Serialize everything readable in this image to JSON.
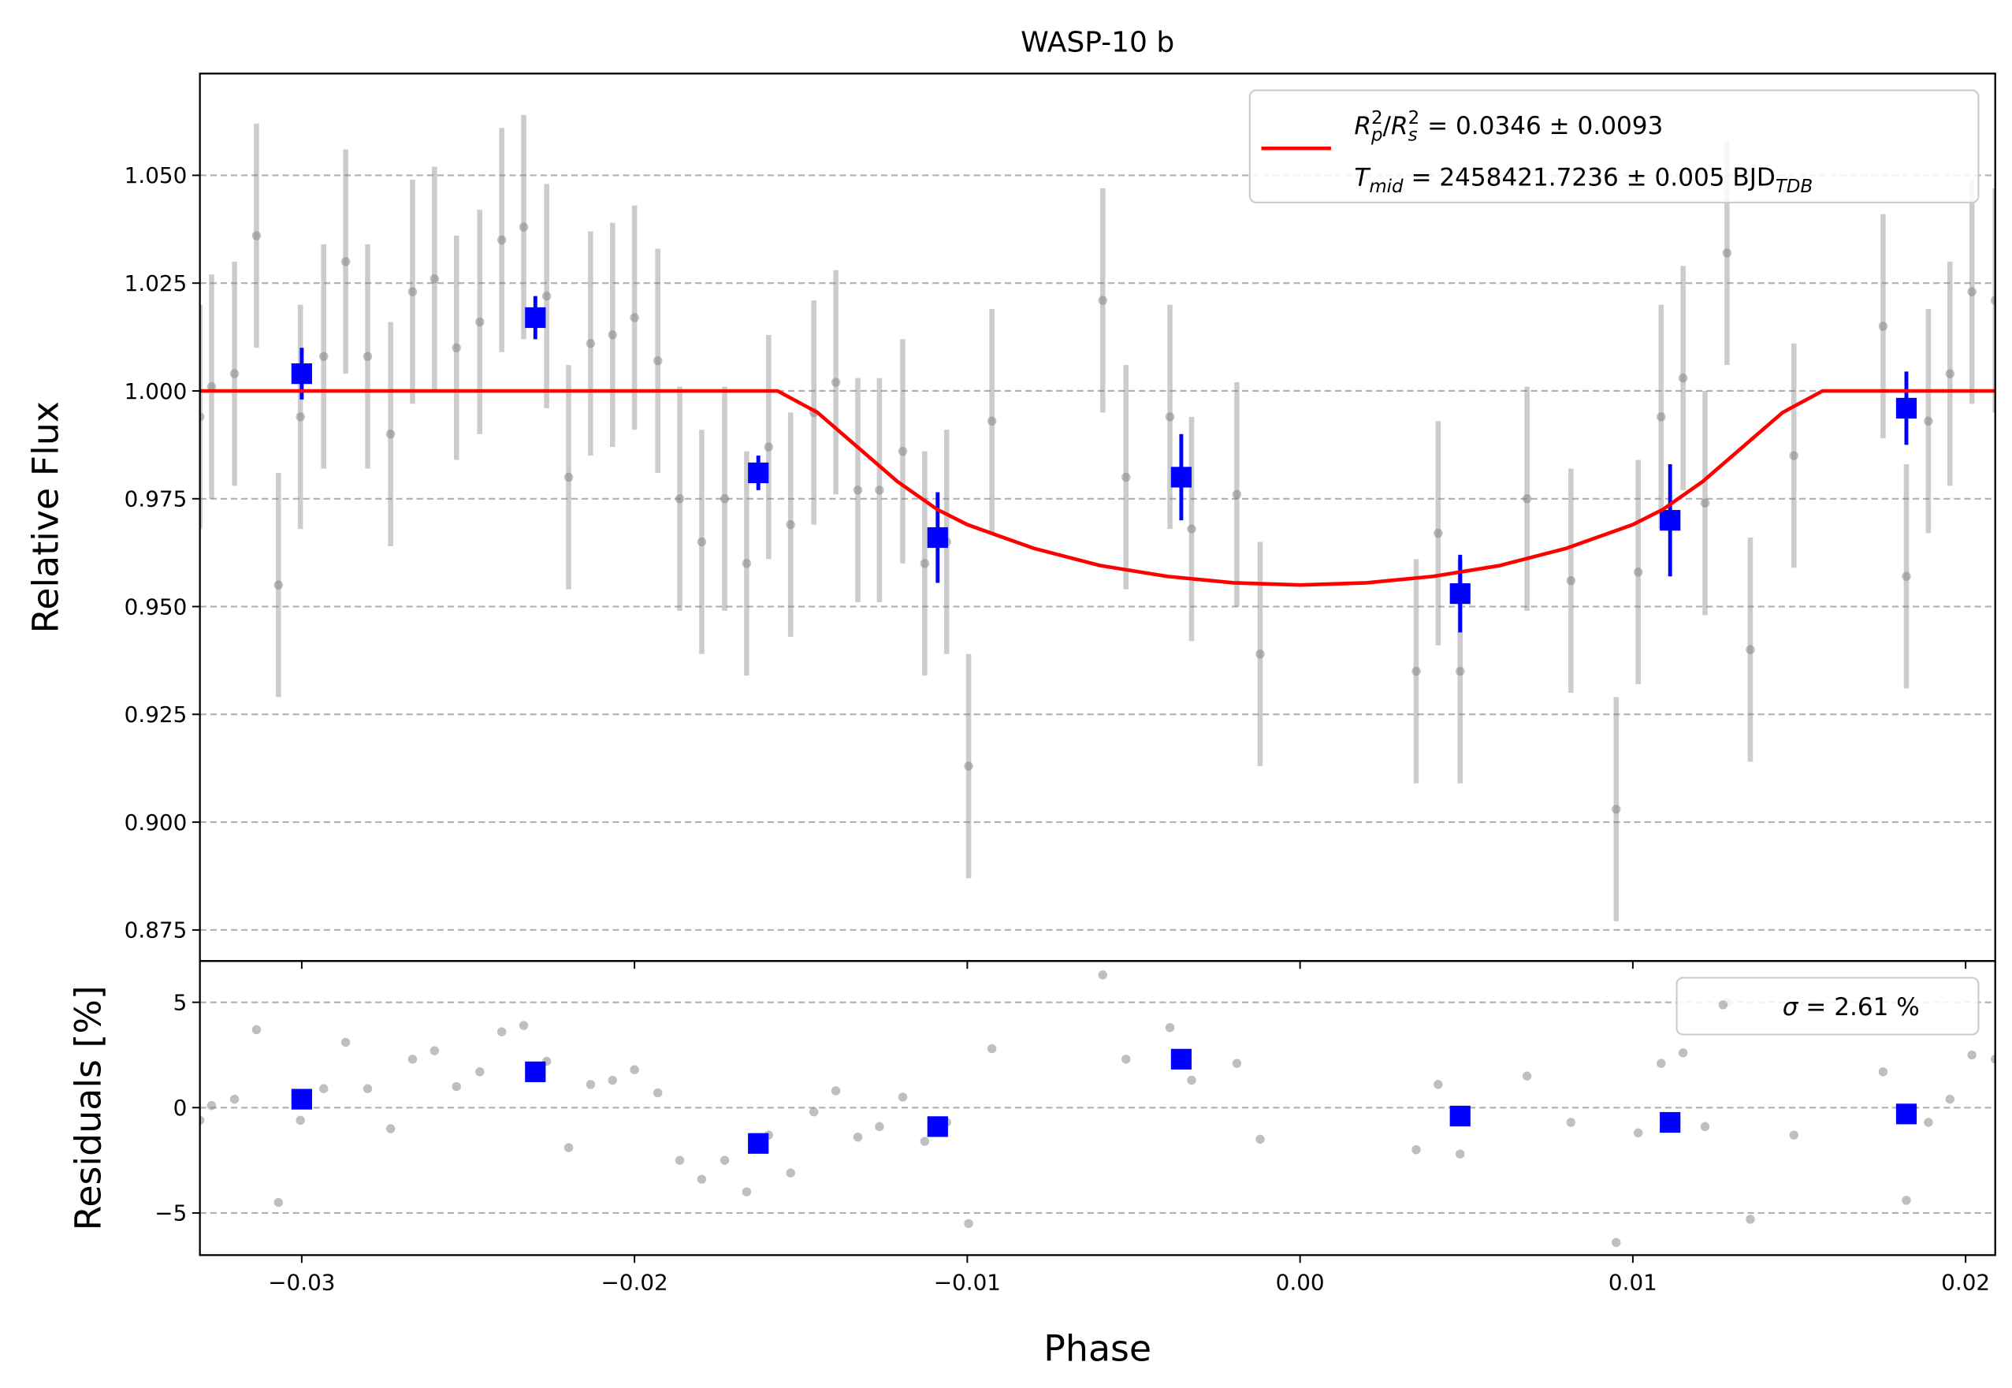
{
  "chart_data": [
    {
      "type": "scatter",
      "title": "WASP-10 b",
      "ylabel": "Relative Flux",
      "xlim": [
        -0.03306,
        0.02089
      ],
      "ylim": [
        0.8678,
        1.0736
      ],
      "yticks": [
        {
          "value": 0.875,
          "label": "0.875"
        },
        {
          "value": 0.9,
          "label": "0.900"
        },
        {
          "value": 0.925,
          "label": "0.925"
        },
        {
          "value": 0.95,
          "label": "0.950"
        },
        {
          "value": 0.975,
          "label": "0.975"
        },
        {
          "value": 1.0,
          "label": "1.000"
        },
        {
          "value": 1.025,
          "label": "1.025"
        },
        {
          "value": 1.05,
          "label": "1.050"
        }
      ],
      "grid": true,
      "legend_loc": "upper right",
      "series": [
        {
          "kind": "points",
          "color": "#808080",
          "error": 0.026,
          "x": [
            -0.03306,
            -0.03271,
            -0.03202,
            -0.03136,
            -0.0307,
            -0.03004,
            -0.02934,
            -0.02868,
            -0.02802,
            -0.02733,
            -0.02667,
            -0.02601,
            -0.02535,
            -0.02465,
            -0.02399,
            -0.02333,
            -0.02264,
            -0.02198,
            -0.02132,
            -0.02066,
            -0.02,
            -0.0193,
            -0.01864,
            -0.01798,
            -0.01729,
            -0.01663,
            -0.01597,
            -0.01531,
            -0.01461,
            -0.01395,
            -0.01329,
            -0.01264,
            -0.01194,
            -0.01128,
            -0.01062,
            -0.00996,
            -0.00926,
            -0.00593,
            -0.00523,
            -0.00391,
            -0.00326,
            -0.0019,
            -0.0012,
            0.00349,
            0.00415,
            0.00481,
            0.00682,
            0.00814,
            0.0095,
            0.01016,
            0.01085,
            0.01151,
            0.01217,
            0.01283,
            0.01353,
            0.01484,
            0.01752,
            0.01822,
            0.01888,
            0.01953,
            0.02019,
            0.02089
          ],
          "values": [
            0.994,
            1.001,
            1.004,
            1.036,
            0.955,
            0.994,
            1.008,
            1.03,
            1.008,
            0.99,
            1.023,
            1.026,
            1.01,
            1.016,
            1.035,
            1.038,
            1.022,
            0.98,
            1.011,
            1.013,
            1.017,
            1.007,
            0.975,
            0.965,
            0.975,
            0.96,
            0.987,
            0.969,
            0.995,
            1.002,
            0.977,
            0.977,
            0.986,
            0.96,
            0.965,
            0.913,
            0.993,
            1.021,
            0.98,
            0.994,
            0.968,
            0.976,
            0.939,
            0.935,
            0.967,
            0.935,
            0.975,
            0.956,
            0.903,
            0.958,
            0.994,
            1.003,
            0.974,
            1.032,
            0.94,
            0.985,
            1.015,
            0.957,
            0.993,
            1.004,
            1.023,
            1.021
          ]
        },
        {
          "kind": "binned",
          "color": "#0000ff",
          "x": [
            -0.03,
            -0.02298,
            -0.01628,
            -0.01089,
            -0.00357,
            0.00481,
            0.01112,
            0.01822
          ],
          "values": [
            1.004,
            1.017,
            0.981,
            0.966,
            0.98,
            0.953,
            0.97,
            0.996
          ],
          "errors": [
            0.006,
            0.005,
            0.004,
            0.0105,
            0.01,
            0.009,
            0.013,
            0.0085
          ]
        },
        {
          "kind": "model",
          "color": "#ff0000",
          "x": [
            -0.03306,
            -0.0157,
            -0.0145,
            -0.0133,
            -0.0121,
            -0.0109,
            -0.01,
            -0.008,
            -0.006,
            -0.004,
            -0.002,
            0,
            0.002,
            0.004,
            0.006,
            0.008,
            0.01,
            0.0109,
            0.0121,
            0.0133,
            0.0145,
            0.0157,
            0.02089
          ],
          "values": [
            1.0,
            1.0,
            0.995,
            0.987,
            0.979,
            0.9725,
            0.969,
            0.9635,
            0.9595,
            0.957,
            0.9555,
            0.955,
            0.9555,
            0.957,
            0.9595,
            0.9635,
            0.969,
            0.9725,
            0.979,
            0.987,
            0.995,
            1.0,
            1.0
          ],
          "label": [
            [
              {
                "text": "R",
                "style": "italic"
              },
              {
                "text": "p",
                "style": "sub"
              },
              {
                "text": "2",
                "style": "sup"
              },
              {
                "text": "/"
              },
              {
                "text": "R",
                "style": "italic"
              },
              {
                "text": "s",
                "style": "sub"
              },
              {
                "text": "2",
                "style": "sup"
              },
              {
                "text": " = 0.0346 ± 0.0093"
              }
            ],
            [
              {
                "text": "T",
                "style": "italic"
              },
              {
                "text": "mid",
                "style": "sub"
              },
              {
                "text": " = 2458421.7236 ± 0.005 BJD"
              },
              {
                "text": "TDB",
                "style": "sub"
              }
            ]
          ]
        }
      ]
    },
    {
      "type": "scatter",
      "xlabel": "Phase",
      "ylabel": "Residuals [%]",
      "ylim": [
        -7.0,
        6.96
      ],
      "yticks": [
        {
          "value": -5,
          "label": "−5"
        },
        0,
        5
      ],
      "xticks": [
        {
          "value": -0.03,
          "label": "−0.03"
        },
        {
          "value": -0.02,
          "label": "−0.02"
        },
        {
          "value": -0.01,
          "label": "−0.01"
        },
        {
          "value": 0,
          "label": "0.00"
        },
        0.01,
        0.02
      ],
      "grid": true,
      "legend_loc": "upper right",
      "series": [
        {
          "kind": "points",
          "color": "#808080",
          "values": [
            -0.6,
            0.1,
            0.4,
            3.7,
            -4.5,
            -0.6,
            0.9,
            3.1,
            0.9,
            -1.0,
            2.3,
            2.7,
            1.0,
            1.7,
            3.6,
            3.9,
            2.2,
            -1.9,
            1.1,
            1.3,
            1.8,
            0.7,
            -2.5,
            -3.4,
            -2.5,
            -4.0,
            -1.3,
            -3.1,
            -0.2,
            0.8,
            -1.4,
            -0.9,
            0.5,
            -1.6,
            -0.7,
            -5.5,
            2.8,
            6.3,
            2.3,
            3.8,
            1.3,
            2.1,
            -1.5,
            -2.0,
            1.1,
            -2.2,
            1.5,
            -0.7,
            -6.4,
            -1.2,
            2.1,
            2.6,
            -0.9,
            5.0,
            -5.3,
            -1.3,
            1.7,
            -4.4,
            -0.7,
            0.4,
            2.5,
            2.3
          ],
          "label": [
            [
              {
                "text": "σ",
                "style": "italic"
              },
              {
                "text": " = 2.61 %"
              }
            ]
          ]
        },
        {
          "kind": "binned",
          "color": "#0000ff",
          "values": [
            0.4,
            1.7,
            -1.7,
            -0.9,
            2.3,
            -0.4,
            -0.7,
            -0.3
          ]
        }
      ]
    }
  ]
}
